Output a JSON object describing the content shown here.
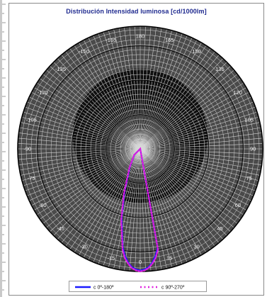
{
  "chart_data": {
    "type": "polar-line",
    "title": "Distribución Intensidad luminosa [cd/1000lm]",
    "angle_labels": [
      "180",
      "-165",
      "-150",
      "-135",
      "-120",
      "-105",
      "-90",
      "-75",
      "-60",
      "-45",
      "-30",
      "-15",
      "0",
      "15",
      "30",
      "45",
      "60",
      "75",
      "90",
      "105",
      "120",
      "135",
      "150",
      "165"
    ],
    "radial_ticks": [],
    "grid": true,
    "legend_position": "bottom",
    "series": [
      {
        "name": "c 0º-180º",
        "color": "#1a1aff",
        "style": "solid",
        "theta_deg": [
          -10,
          -8,
          -6,
          -4,
          -2,
          0,
          2,
          4,
          6,
          8,
          10,
          15,
          20,
          30,
          45,
          180
        ],
        "r": [
          980,
          1060,
          1120,
          1160,
          1180,
          1190,
          1180,
          1160,
          1120,
          1060,
          980,
          700,
          450,
          200,
          80,
          0
        ]
      },
      {
        "name": "c 90º-270º",
        "color": "#e020e0",
        "style": "dotted",
        "theta_deg": [
          -10,
          -8,
          -6,
          -4,
          -2,
          0,
          2,
          4,
          6,
          8,
          10,
          15,
          20,
          30,
          45,
          180
        ],
        "r": [
          1000,
          1080,
          1130,
          1170,
          1190,
          1200,
          1190,
          1170,
          1130,
          1080,
          1000,
          720,
          470,
          210,
          85,
          0
        ]
      }
    ]
  },
  "colors": {
    "grid": "#000000",
    "title": "#1f2a8f"
  }
}
